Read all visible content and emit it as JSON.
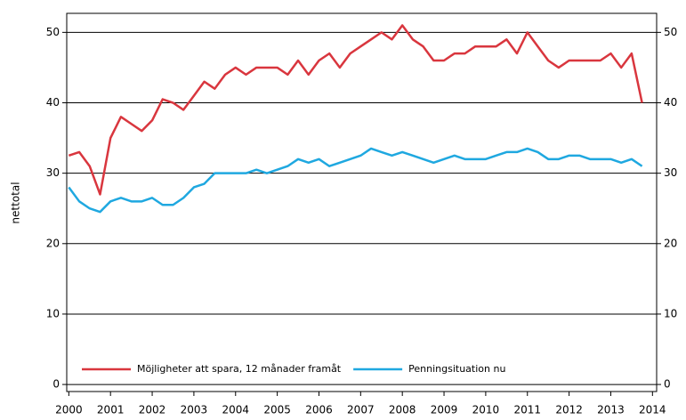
{
  "chart_data": {
    "type": "line",
    "y_label": "nettotal",
    "x": [
      2000,
      2000.25,
      2000.5,
      2000.75,
      2001,
      2001.25,
      2001.5,
      2001.75,
      2002,
      2002.25,
      2002.5,
      2002.75,
      2003,
      2003.25,
      2003.5,
      2003.75,
      2004,
      2004.25,
      2004.5,
      2004.75,
      2005,
      2005.25,
      2005.5,
      2005.75,
      2006,
      2006.25,
      2006.5,
      2006.75,
      2007,
      2007.25,
      2007.5,
      2007.75,
      2008,
      2008.25,
      2008.5,
      2008.75,
      2009,
      2009.25,
      2009.5,
      2009.75,
      2010,
      2010.25,
      2010.5,
      2010.75,
      2011,
      2011.25,
      2011.5,
      2011.75,
      2012,
      2012.25,
      2012.5,
      2012.75,
      2013,
      2013.25,
      2013.5,
      2013.75
    ],
    "series": [
      {
        "name": "Möjligheter att spara, 12 månader framåt",
        "color": "#d9363e",
        "values": [
          32.5,
          33,
          31,
          27,
          35,
          38,
          37,
          36,
          37.5,
          40.5,
          40,
          39,
          41,
          43,
          42,
          44,
          45,
          44,
          45,
          45,
          45,
          44,
          46,
          44,
          46,
          47,
          45,
          47,
          48,
          49,
          50,
          49,
          51,
          49,
          48,
          46,
          46,
          47,
          47,
          48,
          48,
          48,
          49,
          47,
          50,
          48,
          46,
          45,
          46,
          46,
          46,
          46,
          47,
          45,
          47,
          40
        ]
      },
      {
        "name": "Penningsituation nu",
        "color": "#1fa8e0",
        "values": [
          28,
          26,
          25,
          24.5,
          26,
          26.5,
          26,
          26,
          26.5,
          25.5,
          25.5,
          26.5,
          28,
          28.5,
          30,
          30,
          30,
          30,
          30.5,
          30,
          30.5,
          31,
          32,
          31.5,
          32,
          31,
          31.5,
          32,
          32.5,
          33.5,
          33,
          32.5,
          33,
          32.5,
          32,
          31.5,
          32,
          32.5,
          32,
          32,
          32,
          32.5,
          33,
          33,
          33.5,
          33,
          32,
          32,
          32.5,
          32.5,
          32,
          32,
          32,
          31.5,
          32,
          31
        ]
      }
    ],
    "xlim": [
      1999.95,
      2014.1
    ],
    "xticks": [
      2000,
      2001,
      2002,
      2003,
      2004,
      2005,
      2006,
      2007,
      2008,
      2009,
      2010,
      2011,
      2012,
      2013,
      2014
    ],
    "ylim": [
      -1,
      52.7
    ],
    "yticks": [
      0,
      10,
      20,
      30,
      40,
      50
    ],
    "y2lim": [
      -1,
      52.7
    ],
    "y2ticks": [
      0,
      10,
      20,
      30,
      40,
      50
    ],
    "grid": true,
    "legend": "bottom"
  }
}
